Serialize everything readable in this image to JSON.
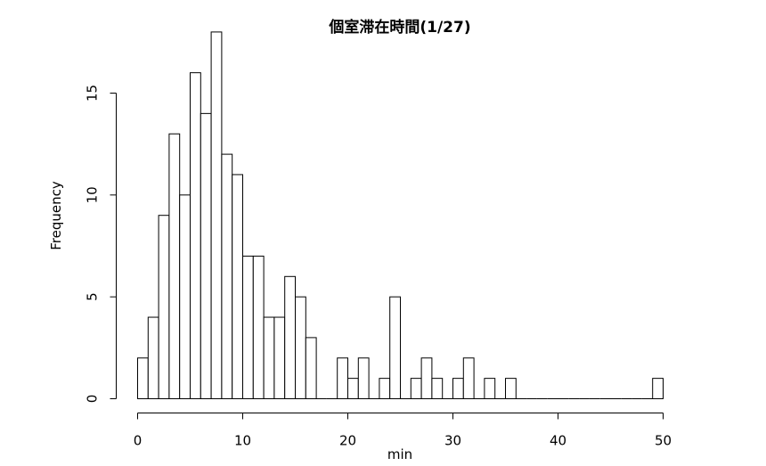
{
  "chart_data": {
    "type": "bar",
    "title": "個室滞在時間(1/27)",
    "xlabel": "min",
    "ylabel": "Frequency",
    "bin_width": 1,
    "x_range": [
      0,
      50
    ],
    "ylim": [
      0,
      18
    ],
    "x_ticks": [
      0,
      10,
      20,
      30,
      40,
      50
    ],
    "y_ticks": [
      0,
      5,
      10,
      15
    ],
    "bin_starts": [
      0,
      1,
      2,
      3,
      4,
      5,
      6,
      7,
      8,
      9,
      10,
      11,
      12,
      13,
      14,
      15,
      16,
      17,
      18,
      19,
      20,
      21,
      22,
      23,
      24,
      25,
      26,
      27,
      28,
      29,
      30,
      31,
      32,
      33,
      34,
      35,
      36,
      37,
      38,
      39,
      40,
      41,
      42,
      43,
      44,
      45,
      46,
      47,
      48,
      49
    ],
    "values": [
      2,
      4,
      9,
      13,
      10,
      16,
      14,
      18,
      12,
      11,
      7,
      7,
      4,
      4,
      6,
      5,
      3,
      0,
      0,
      2,
      1,
      2,
      0,
      1,
      5,
      0,
      1,
      2,
      1,
      0,
      1,
      2,
      0,
      1,
      0,
      1,
      0,
      0,
      0,
      0,
      0,
      0,
      0,
      0,
      0,
      0,
      0,
      0,
      0,
      1
    ],
    "grid": false,
    "legend": "none"
  }
}
